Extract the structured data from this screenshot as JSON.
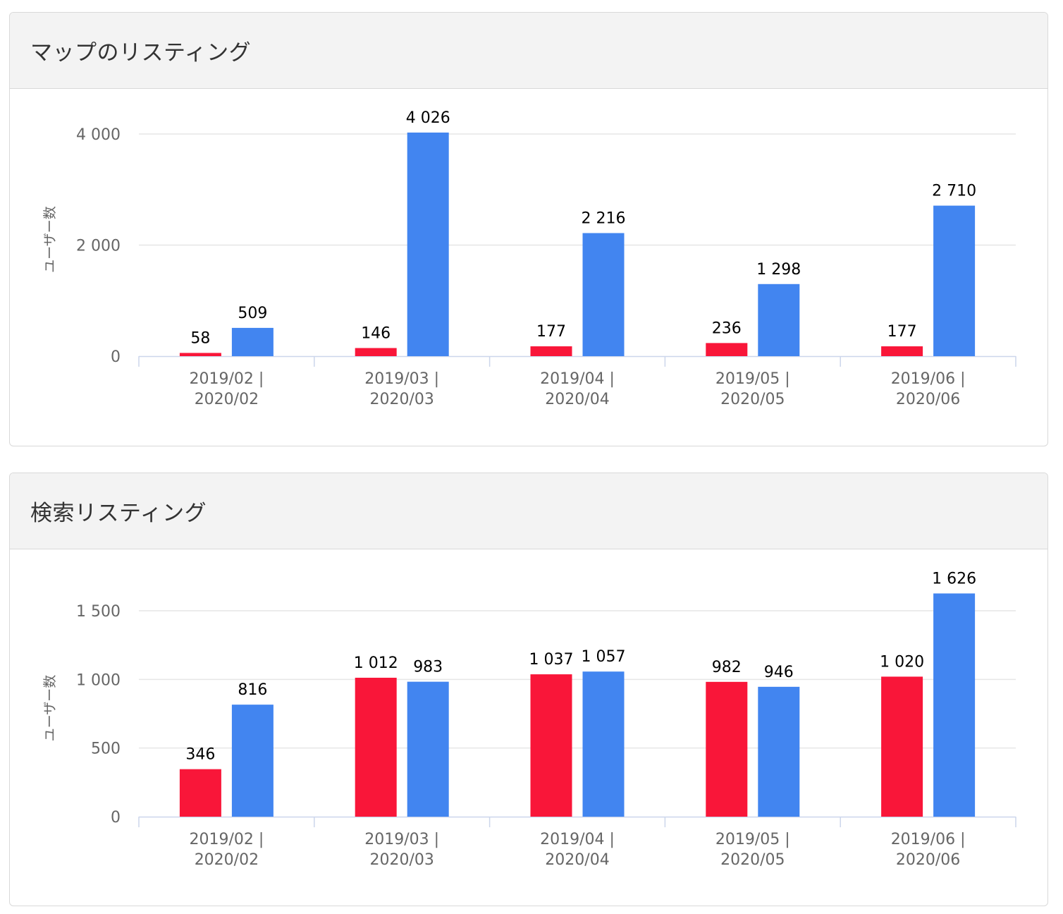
{
  "colors": {
    "series_2019": "#f91639",
    "series_2020": "#4285f0",
    "grid": "#e6e6e6",
    "axis": "#ccd6eb"
  },
  "panels": [
    {
      "title": "マップのリスティング"
    },
    {
      "title": "検索リスティング"
    }
  ],
  "chart_data": [
    {
      "type": "bar",
      "title": "マップのリスティング",
      "ylabel": "ユーザー数",
      "categories": [
        [
          "2019/02 |",
          "2020/02"
        ],
        [
          "2019/03 |",
          "2020/03"
        ],
        [
          "2019/04 |",
          "2020/04"
        ],
        [
          "2019/05 |",
          "2020/05"
        ],
        [
          "2019/06 |",
          "2020/06"
        ]
      ],
      "series": [
        {
          "values": [
            58,
            146,
            177,
            236,
            177
          ],
          "color": "#f91639"
        },
        {
          "values": [
            509,
            4026,
            2216,
            1298,
            2710
          ],
          "color": "#4285f0"
        }
      ],
      "value_labels": [
        [
          "58",
          "146",
          "177",
          "236",
          "177"
        ],
        [
          "509",
          "4 026",
          "2 216",
          "1 298",
          "2 710"
        ]
      ],
      "yticks": [
        0,
        2000,
        4000
      ],
      "ytick_labels": [
        "0",
        "2 000",
        "4 000"
      ],
      "ylim": [
        0,
        4026
      ],
      "grid": true
    },
    {
      "type": "bar",
      "title": "検索リスティング",
      "ylabel": "ユーザー数",
      "categories": [
        [
          "2019/02 |",
          "2020/02"
        ],
        [
          "2019/03 |",
          "2020/03"
        ],
        [
          "2019/04 |",
          "2020/04"
        ],
        [
          "2019/05 |",
          "2020/05"
        ],
        [
          "2019/06 |",
          "2020/06"
        ]
      ],
      "series": [
        {
          "values": [
            346,
            1012,
            1037,
            982,
            1020
          ],
          "color": "#f91639"
        },
        {
          "values": [
            816,
            983,
            1057,
            946,
            1626
          ],
          "color": "#4285f0"
        }
      ],
      "value_labels": [
        [
          "346",
          "1 012",
          "1 037",
          "982",
          "1 020"
        ],
        [
          "816",
          "983",
          "1 057",
          "946",
          "1 626"
        ]
      ],
      "yticks": [
        0,
        500,
        1000,
        1500
      ],
      "ytick_labels": [
        "0",
        "500",
        "1 000",
        "1 500"
      ],
      "ylim": [
        0,
        1626
      ],
      "grid": true
    }
  ]
}
